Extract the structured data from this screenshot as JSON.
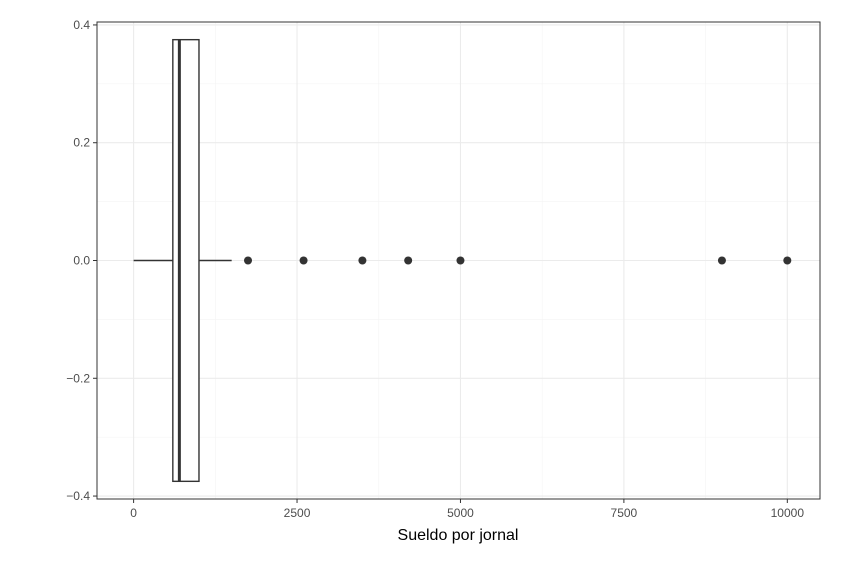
{
  "chart_data": {
    "type": "boxplot",
    "title": "",
    "xlabel": "Sueldo por jornal",
    "ylabel": "",
    "xlim": [
      -560,
      10500
    ],
    "ylim": [
      -0.405,
      0.405
    ],
    "x_ticks": [
      0,
      2500,
      5000,
      7500,
      10000
    ],
    "x_tick_labels": [
      "0",
      "2500",
      "5000",
      "7500",
      "10000"
    ],
    "y_ticks": [
      0.4,
      0.2,
      0.0,
      -0.2,
      -0.4
    ],
    "y_tick_labels": [
      "0.4",
      "0.2",
      "0.0",
      "−0.2",
      "−0.4"
    ],
    "grid": true,
    "box": {
      "whisker_low": 0,
      "q1": 600,
      "median": 700,
      "q3": 1000,
      "whisker_high": 1500,
      "y_center": 0,
      "half_height": 0.375
    },
    "outliers": [
      1750,
      2600,
      3500,
      4200,
      5000,
      9000,
      10000
    ],
    "colors": {
      "panel_border": "#333333",
      "grid_major": "#ebebeb",
      "grid_minor": "#f4f4f4",
      "box_line": "#333333",
      "point": "#333333"
    }
  }
}
